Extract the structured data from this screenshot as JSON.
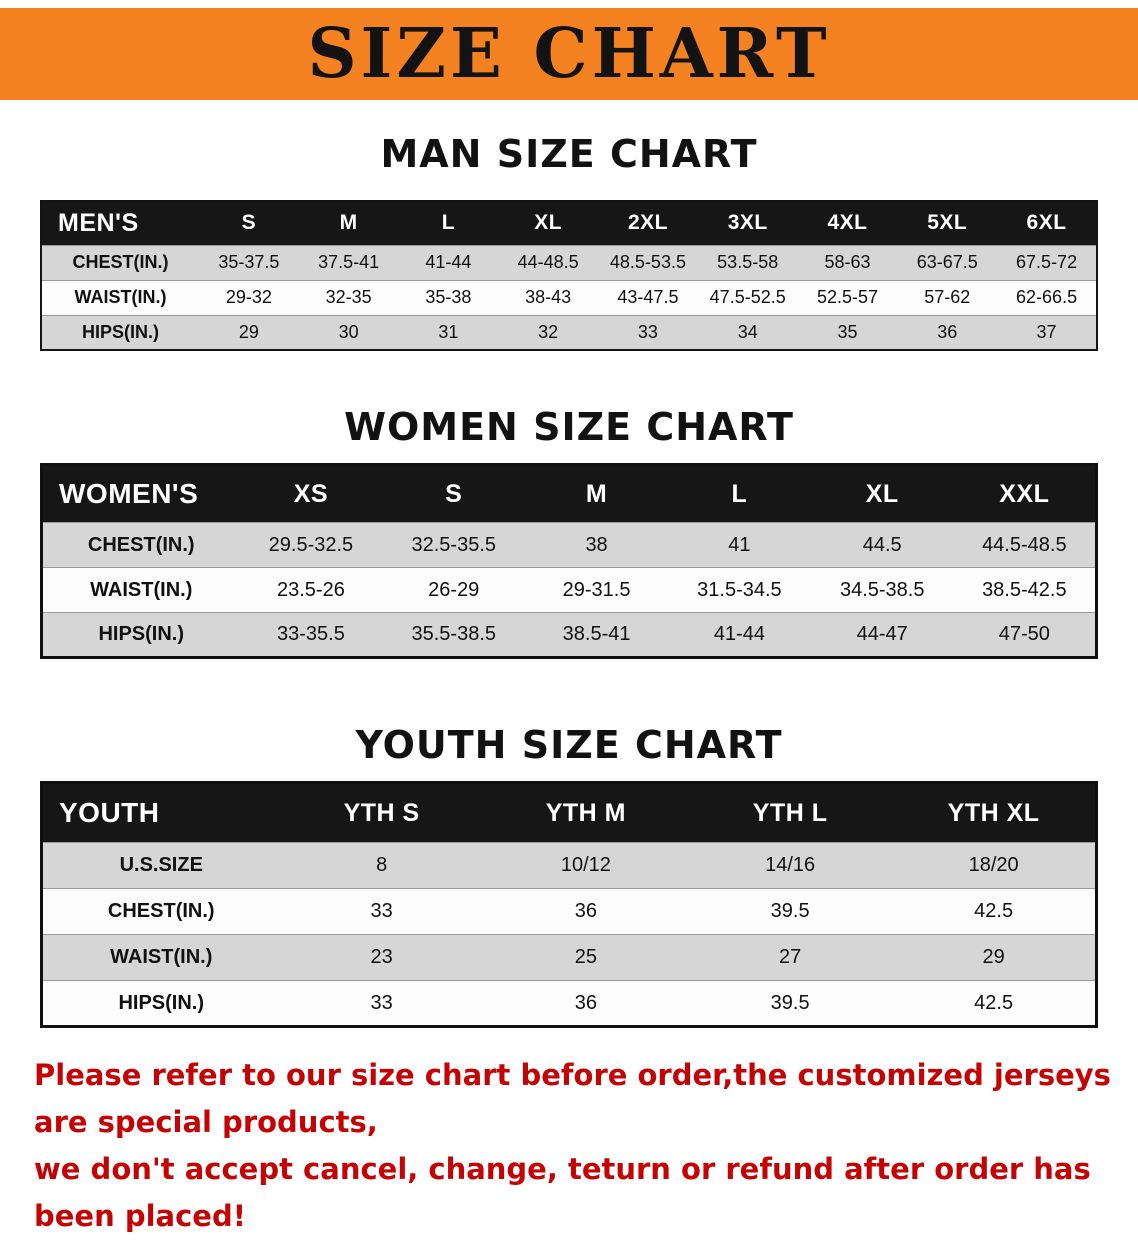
{
  "banner": {
    "title": "SIZE CHART"
  },
  "colors": {
    "banner_orange": "#F58220",
    "table_header_black": "#161616",
    "row_gray": "#d6d6d6",
    "disclaimer_red": "#c40404"
  },
  "man": {
    "heading": "MAN SIZE CHART",
    "corner": "MEN'S",
    "columns": [
      "S",
      "M",
      "L",
      "XL",
      "2XL",
      "3XL",
      "4XL",
      "5XL",
      "6XL"
    ],
    "rows": [
      {
        "label": "CHEST(IN.)",
        "values": [
          "35-37.5",
          "37.5-41",
          "41-44",
          "44-48.5",
          "48.5-53.5",
          "53.5-58",
          "58-63",
          "63-67.5",
          "67.5-72"
        ]
      },
      {
        "label": "WAIST(IN.)",
        "values": [
          "29-32",
          "32-35",
          "35-38",
          "38-43",
          "43-47.5",
          "47.5-52.5",
          "52.5-57",
          "57-62",
          "62-66.5"
        ]
      },
      {
        "label": "HIPS(IN.)",
        "values": [
          "29",
          "30",
          "31",
          "32",
          "33",
          "34",
          "35",
          "36",
          "37"
        ]
      }
    ]
  },
  "women": {
    "heading": "WOMEN SIZE CHART",
    "corner": "WOMEN'S",
    "columns": [
      "XS",
      "S",
      "M",
      "L",
      "XL",
      "XXL"
    ],
    "rows": [
      {
        "label": "CHEST(IN.)",
        "values": [
          "29.5-32.5",
          "32.5-35.5",
          "38",
          "41",
          "44.5",
          "44.5-48.5"
        ]
      },
      {
        "label": "WAIST(IN.)",
        "values": [
          "23.5-26",
          "26-29",
          "29-31.5",
          "31.5-34.5",
          "34.5-38.5",
          "38.5-42.5"
        ]
      },
      {
        "label": "HIPS(IN.)",
        "values": [
          "33-35.5",
          "35.5-38.5",
          "38.5-41",
          "41-44",
          "44-47",
          "47-50"
        ]
      }
    ]
  },
  "youth": {
    "heading": "YOUTH SIZE CHART",
    "corner": "YOUTH",
    "columns": [
      "YTH S",
      "YTH M",
      "YTH L",
      "YTH XL"
    ],
    "rows": [
      {
        "label": "U.S.SIZE",
        "values": [
          "8",
          "10/12",
          "14/16",
          "18/20"
        ]
      },
      {
        "label": "CHEST(IN.)",
        "values": [
          "33",
          "36",
          "39.5",
          "42.5"
        ]
      },
      {
        "label": "WAIST(IN.)",
        "values": [
          "23",
          "25",
          "27",
          "29"
        ]
      },
      {
        "label": "HIPS(IN.)",
        "values": [
          "33",
          "36",
          "39.5",
          "42.5"
        ]
      }
    ]
  },
  "disclaimer": {
    "line1": "Please refer to our size chart before order,the customized jerseys are special products,",
    "line2": "we don't accept cancel, change, teturn or refund after order has been placed!"
  }
}
